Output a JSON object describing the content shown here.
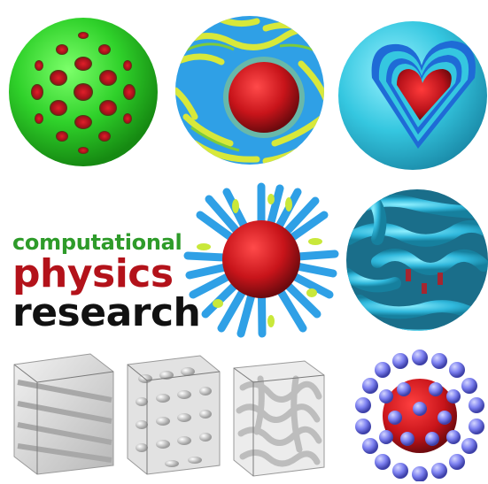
{
  "caption": {
    "line1": "computational",
    "line2": "physics",
    "line3": "research"
  },
  "colors": {
    "green_line": "#2e9b2a",
    "red_line": "#b3121a",
    "black_line": "#111111",
    "green_sphere": "#2fd12a",
    "core_red": "#c8141a",
    "cyan_shell": "#35c7e0",
    "blue_ribbon": "#2fa0e6",
    "yellow_green": "#c9e83a",
    "lavender": "#7c80f0",
    "cube_gray": "#d8d8d8"
  },
  "tiles": [
    {
      "name": "porous-green-sphere",
      "icon": "porous-green-sphere-icon"
    },
    {
      "name": "striped-sphere-cutaway",
      "icon": "striped-sphere-cutaway-icon"
    },
    {
      "name": "heart-shell-sphere",
      "icon": "heart-shell-sphere-icon"
    },
    {
      "name": "spiky-micelle-sphere",
      "icon": "spiky-micelle-sphere-icon"
    },
    {
      "name": "worm-coil-sphere",
      "icon": "worm-coil-sphere-icon"
    },
    {
      "name": "lamellar-cube",
      "icon": "lamellar-cube-icon"
    },
    {
      "name": "cylinder-cube",
      "icon": "cylinder-cube-icon"
    },
    {
      "name": "gyroid-cube",
      "icon": "gyroid-cube-icon"
    },
    {
      "name": "bead-cluster-sphere",
      "icon": "bead-cluster-sphere-icon"
    }
  ]
}
